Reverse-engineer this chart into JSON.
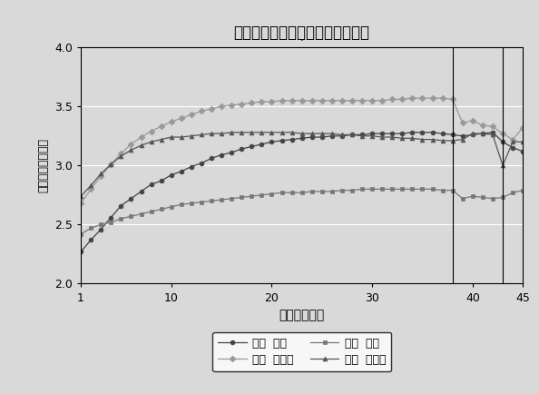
{
  "title": "賃金－潜在経験年数プロファイル",
  "subtitle": ".",
  "xlabel": "潜在経験年数",
  "ylabel": "賃金率自然対数値",
  "xlim": [
    1,
    45
  ],
  "ylim": [
    2.0,
    4.0
  ],
  "xticks": [
    1,
    10,
    20,
    30,
    40,
    45
  ],
  "yticks": [
    2.0,
    2.5,
    3.0,
    3.5,
    4.0
  ],
  "vlines": [
    38,
    43
  ],
  "background_color": "#d9d9d9",
  "plot_background_color": "#d9d9d9",
  "series": {
    "japan_highschool": {
      "label": "日本  高卒",
      "color": "#444444",
      "marker": "o",
      "markersize": 3.5,
      "values": [
        2.27,
        2.37,
        2.46,
        2.56,
        2.66,
        2.72,
        2.78,
        2.84,
        2.87,
        2.92,
        2.95,
        2.99,
        3.02,
        3.06,
        3.09,
        3.11,
        3.14,
        3.16,
        3.18,
        3.2,
        3.21,
        3.22,
        3.23,
        3.24,
        3.24,
        3.25,
        3.25,
        3.26,
        3.26,
        3.27,
        3.27,
        3.27,
        3.27,
        3.28,
        3.28,
        3.28,
        3.27,
        3.26,
        3.25,
        3.26,
        3.27,
        3.28,
        3.2,
        3.15,
        3.12
      ]
    },
    "japan_college": {
      "label": "日本  四大卒",
      "color": "#999999",
      "marker": "D",
      "markersize": 3.5,
      "values": [
        2.68,
        2.8,
        2.91,
        3.01,
        3.1,
        3.18,
        3.24,
        3.29,
        3.33,
        3.37,
        3.4,
        3.43,
        3.46,
        3.48,
        3.5,
        3.51,
        3.52,
        3.53,
        3.54,
        3.54,
        3.55,
        3.55,
        3.55,
        3.55,
        3.55,
        3.55,
        3.55,
        3.55,
        3.55,
        3.55,
        3.55,
        3.56,
        3.56,
        3.57,
        3.57,
        3.57,
        3.57,
        3.56,
        3.36,
        3.38,
        3.34,
        3.33,
        3.27,
        3.22,
        3.32
      ]
    },
    "us_highschool": {
      "label": "米国  高卒",
      "color": "#777777",
      "marker": "s",
      "markersize": 3.5,
      "values": [
        2.42,
        2.47,
        2.5,
        2.52,
        2.55,
        2.57,
        2.59,
        2.61,
        2.63,
        2.65,
        2.67,
        2.68,
        2.69,
        2.7,
        2.71,
        2.72,
        2.73,
        2.74,
        2.75,
        2.76,
        2.77,
        2.77,
        2.77,
        2.78,
        2.78,
        2.78,
        2.79,
        2.79,
        2.8,
        2.8,
        2.8,
        2.8,
        2.8,
        2.8,
        2.8,
        2.8,
        2.79,
        2.79,
        2.72,
        2.74,
        2.73,
        2.72,
        2.73,
        2.77,
        2.79
      ]
    },
    "us_college": {
      "label": "米国  四大卒",
      "color": "#555555",
      "marker": "^",
      "markersize": 3.5,
      "values": [
        2.74,
        2.83,
        2.93,
        3.01,
        3.08,
        3.13,
        3.17,
        3.2,
        3.22,
        3.24,
        3.24,
        3.25,
        3.26,
        3.27,
        3.27,
        3.28,
        3.28,
        3.28,
        3.28,
        3.28,
        3.28,
        3.28,
        3.27,
        3.27,
        3.27,
        3.27,
        3.26,
        3.26,
        3.25,
        3.25,
        3.24,
        3.24,
        3.23,
        3.23,
        3.22,
        3.22,
        3.21,
        3.21,
        3.22,
        3.27,
        3.27,
        3.26,
        3.0,
        3.2,
        3.2
      ]
    }
  }
}
